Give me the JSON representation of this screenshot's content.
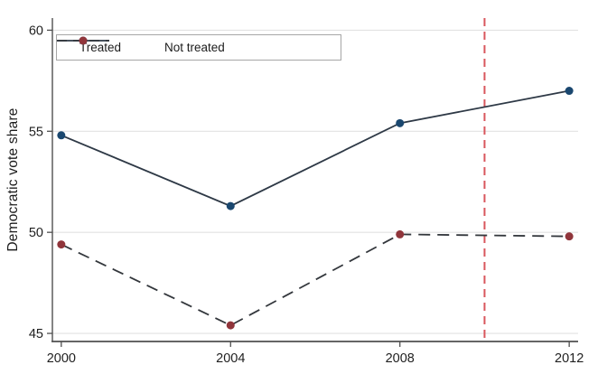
{
  "chart_data": {
    "type": "line",
    "title": "",
    "xlabel": "",
    "ylabel": "Democratic vote share",
    "x": [
      2000,
      2004,
      2008,
      2012
    ],
    "xticks": [
      "2000",
      "2004",
      "2008",
      "2012"
    ],
    "yticks": [
      "45",
      "50",
      "55",
      "60"
    ],
    "xlim": [
      1999.79,
      2012.21
    ],
    "ylim": [
      44.6,
      60.6
    ],
    "grid": "horizontal",
    "legend_position": "top-left-inside",
    "series": [
      {
        "name": "Treated",
        "values": [
          54.8,
          51.3,
          55.4,
          57.0
        ],
        "line_style": "solid",
        "line_color": "#2e3946",
        "marker": "circle",
        "marker_color": "#1a476f"
      },
      {
        "name": "Not treated",
        "values": [
          49.4,
          45.4,
          49.9,
          49.8
        ],
        "line_style": "dashed",
        "line_color": "#33373c",
        "marker": "circle",
        "marker_color": "#90353b"
      }
    ],
    "vline": {
      "x": 2010,
      "style": "dashed",
      "color": "#d9565c"
    },
    "colors": {
      "background": "#ffffff",
      "gridline": "#e2e2e2",
      "axis": "#4f4f4f",
      "tick_label": "#1f1f1f",
      "legend_border": "#a6a6a6"
    }
  }
}
